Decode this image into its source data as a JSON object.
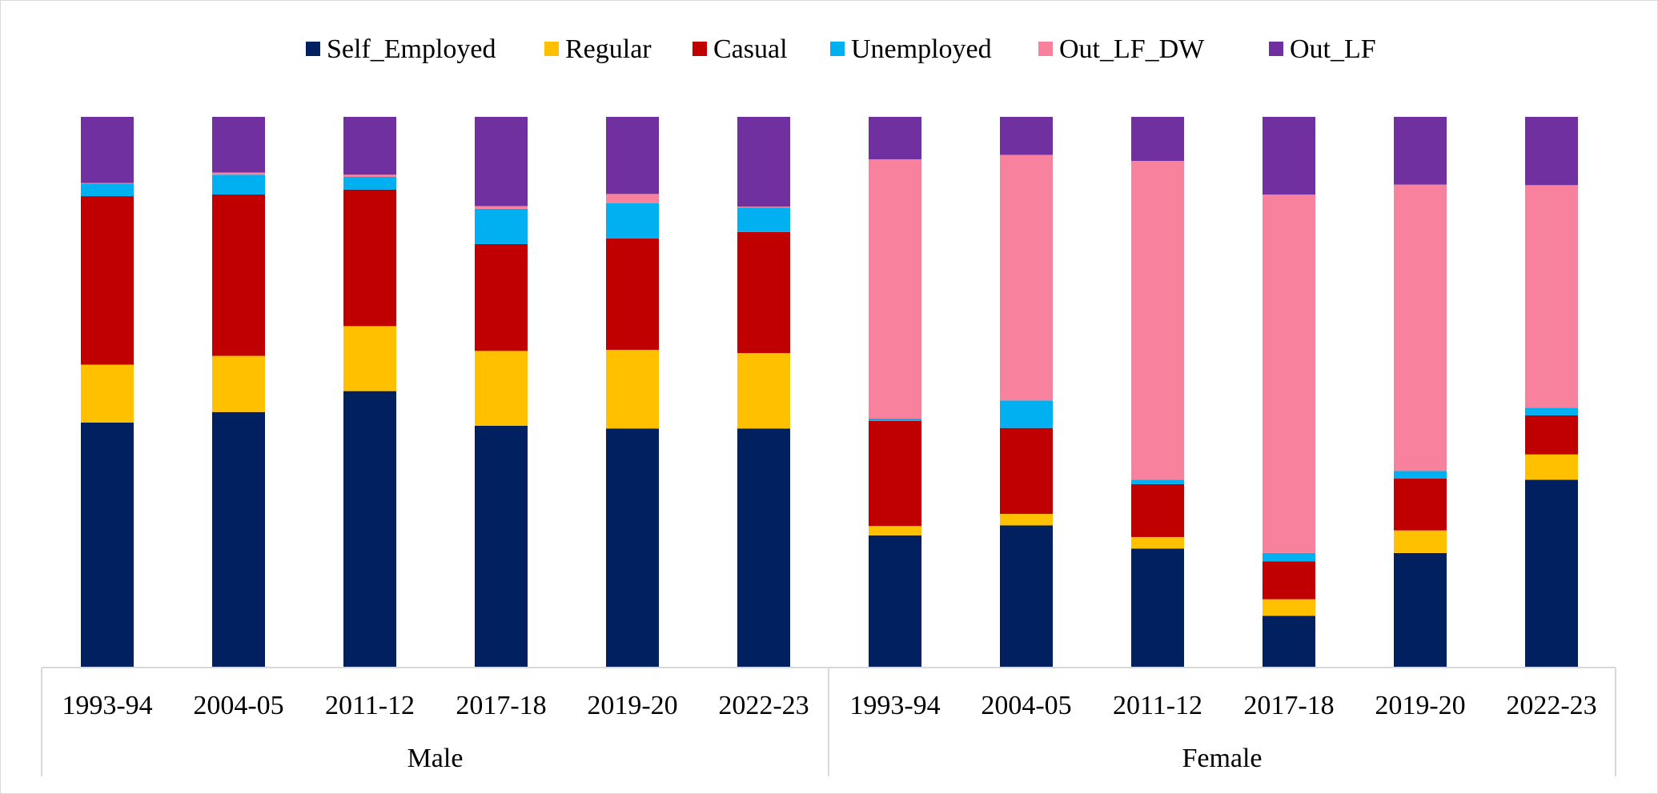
{
  "chart_data": {
    "type": "bar",
    "stacked": true,
    "normalized": true,
    "groups": [
      {
        "name": "Male",
        "categories": [
          "1993-94",
          "2004-05",
          "2011-12",
          "2017-18",
          "2019-20",
          "2022-23"
        ]
      },
      {
        "name": "Female",
        "categories": [
          "1993-94",
          "2004-05",
          "2011-12",
          "2017-18",
          "2019-20",
          "2022-23"
        ]
      }
    ],
    "series": [
      {
        "name": "Self_Employed",
        "color": "#002060",
        "values": [
          44.5,
          46.4,
          50.2,
          43.9,
          43.4,
          43.4,
          24.0,
          25.8,
          21.6,
          9.4,
          20.8,
          34.1
        ]
      },
      {
        "name": "Regular",
        "color": "#FFC000",
        "values": [
          10.5,
          10.2,
          11.8,
          13.6,
          14.3,
          13.7,
          1.7,
          2.1,
          2.1,
          3.0,
          4.1,
          4.6
        ]
      },
      {
        "name": "Casual",
        "color": "#C00000",
        "values": [
          30.6,
          29.3,
          24.8,
          19.4,
          20.2,
          22.0,
          19.1,
          15.6,
          9.6,
          6.9,
          9.4,
          7.1
        ]
      },
      {
        "name": "Unemployed",
        "color": "#00B0F0",
        "values": [
          2.3,
          3.6,
          2.3,
          6.4,
          6.4,
          4.4,
          0.4,
          5.0,
          0.8,
          1.5,
          1.4,
          1.4
        ]
      },
      {
        "name": "Out_LF_DW",
        "color": "#F8819E",
        "values": [
          0.1,
          0.4,
          0.4,
          0.5,
          1.7,
          0.2,
          47.1,
          44.6,
          57.9,
          65.1,
          52.0,
          40.4
        ]
      },
      {
        "name": "Out_LF",
        "color": "#7030A0",
        "values": [
          12.0,
          10.1,
          10.5,
          16.2,
          14.0,
          16.3,
          7.7,
          6.9,
          8.0,
          14.1,
          12.3,
          12.4
        ]
      }
    ],
    "ylim": [
      0,
      100
    ],
    "legend_position": "top",
    "grid": false
  }
}
